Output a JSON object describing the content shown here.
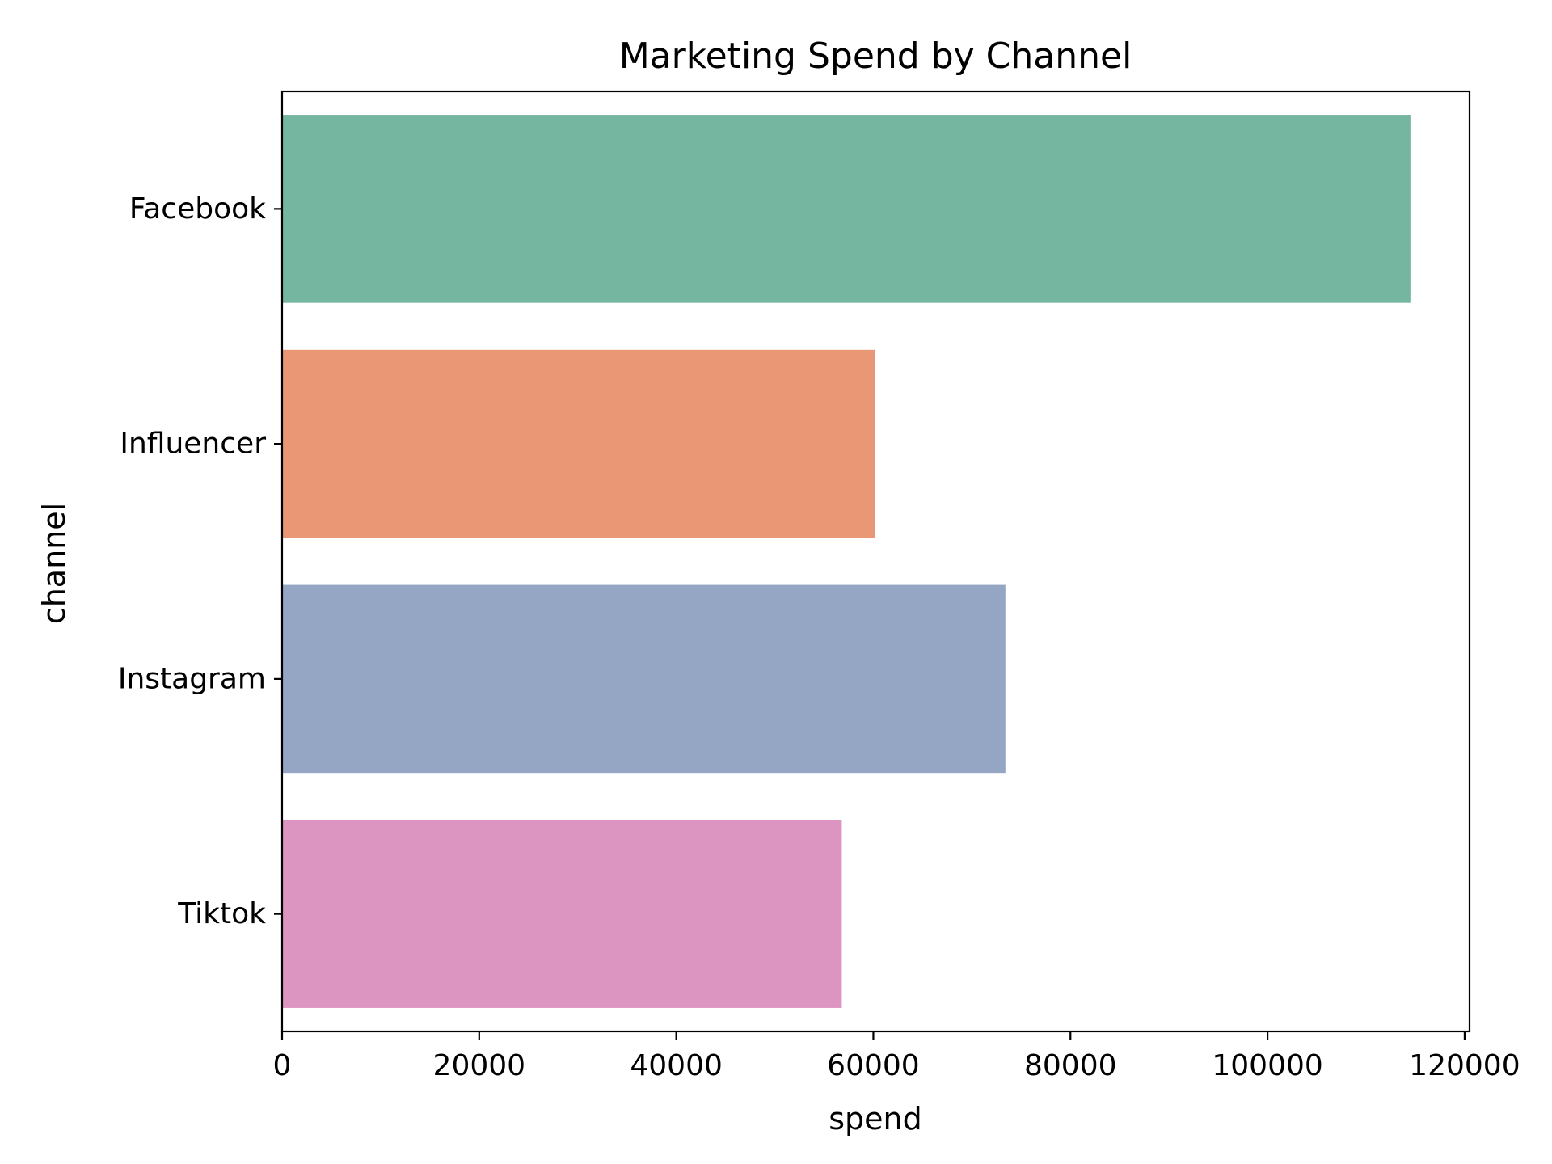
{
  "chart_data": {
    "type": "bar",
    "orientation": "horizontal",
    "title": "Marketing Spend by Channel",
    "xlabel": "spend",
    "ylabel": "channel",
    "categories": [
      "Facebook",
      "Influencer",
      "Instagram",
      "Tiktok"
    ],
    "values": [
      114500,
      60200,
      73400,
      56800
    ],
    "colors": [
      "#75b6a0",
      "#e99775",
      "#95a5c4",
      "#dc95c1"
    ],
    "xlim": [
      0,
      120500
    ],
    "xticks": [
      0,
      20000,
      40000,
      60000,
      80000,
      100000,
      120000
    ],
    "xtick_labels": [
      "0",
      "20000",
      "40000",
      "60000",
      "80000",
      "100000",
      "120000"
    ],
    "grid": false,
    "legend": "none"
  }
}
